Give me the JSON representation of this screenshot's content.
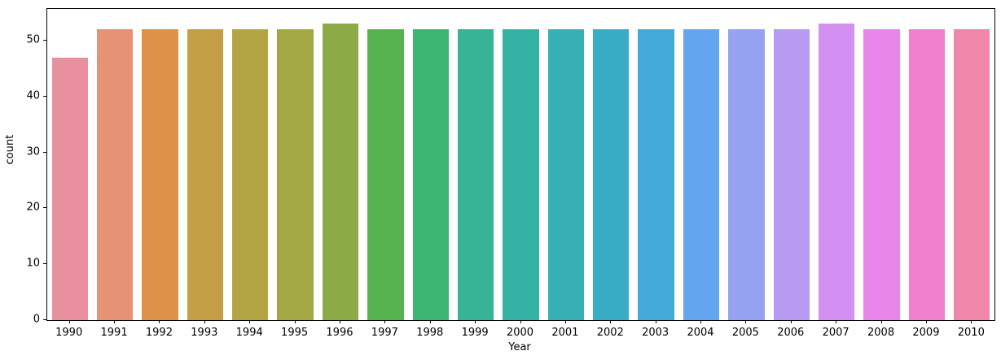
{
  "chart_data": {
    "type": "bar",
    "title": "",
    "xlabel": "Year",
    "ylabel": "count",
    "categories": [
      "1990",
      "1991",
      "1992",
      "1993",
      "1994",
      "1995",
      "1996",
      "1997",
      "1998",
      "1999",
      "2000",
      "2001",
      "2002",
      "2003",
      "2004",
      "2005",
      "2006",
      "2007",
      "2008",
      "2009",
      "2010"
    ],
    "values": [
      47,
      52,
      52,
      52,
      52,
      52,
      53,
      52,
      52,
      52,
      52,
      52,
      52,
      52,
      52,
      52,
      52,
      53,
      52,
      52,
      52
    ],
    "bar_colors": [
      "#e9909f",
      "#e59275",
      "#dc9348",
      "#c49e44",
      "#b3a444",
      "#a3a845",
      "#8cab47",
      "#55b44f",
      "#3cb573",
      "#36b495",
      "#35b2a6",
      "#37b0b6",
      "#39adc6",
      "#41aad9",
      "#64a5f0",
      "#95a2f2",
      "#b79bf2",
      "#d490f0",
      "#e986e9",
      "#f180cf",
      "#f186ab"
    ],
    "yticks": [
      0,
      10,
      20,
      30,
      40,
      50
    ],
    "ylim": [
      0,
      55.65
    ],
    "grid": false,
    "legend": null,
    "bar_relative_width": 0.8
  }
}
